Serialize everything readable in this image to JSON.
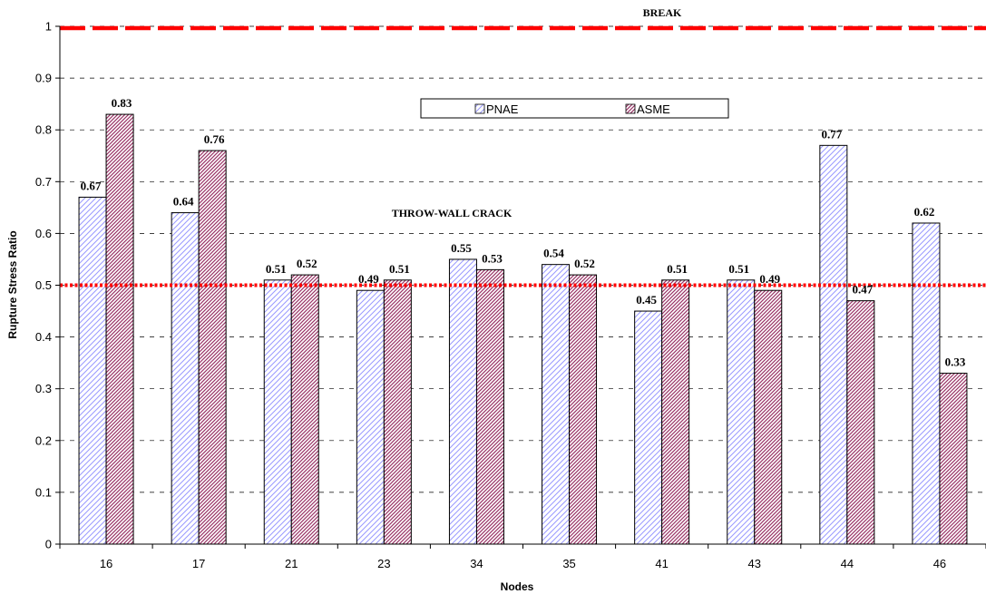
{
  "chart_data": {
    "type": "bar",
    "xlabel": "Nodes",
    "ylabel": "Rupture Stress Ratio",
    "categories": [
      "16",
      "17",
      "21",
      "23",
      "34",
      "35",
      "41",
      "43",
      "44",
      "46"
    ],
    "series": [
      {
        "name": "PNAE",
        "values": [
          0.67,
          0.64,
          0.51,
          0.49,
          0.55,
          0.54,
          0.45,
          0.51,
          0.77,
          0.62
        ],
        "color": "#9999ff",
        "pattern": "light-diagonal"
      },
      {
        "name": "ASME",
        "values": [
          0.83,
          0.76,
          0.52,
          0.51,
          0.53,
          0.52,
          0.51,
          0.49,
          0.47,
          0.33
        ],
        "color": "#993366",
        "pattern": "dense-diagonal"
      }
    ],
    "data_labels": {
      "PNAE": [
        "0.67",
        "0.64",
        "0.51",
        "0.49",
        "0.55",
        "0.54",
        "0.45",
        "0.51",
        "0.77",
        "0.62"
      ],
      "ASME": [
        "0.83",
        "0.76",
        "0.52",
        "0.51",
        "0.53",
        "0.52",
        "0.51",
        "0.49",
        "0.47",
        "0.33"
      ]
    },
    "ylim": [
      0,
      1
    ],
    "yticks": [
      "0",
      "0.1",
      "0.2",
      "0.3",
      "0.4",
      "0.5",
      "0.6",
      "0.7",
      "0.8",
      "0.9",
      "1"
    ],
    "grid": true,
    "legend": "top-center",
    "reference_lines": [
      {
        "label": "BREAK",
        "y": 1.0,
        "color": "#ff0000",
        "style": "long-dash"
      },
      {
        "label": "THROW-WALL CRACK",
        "y": 0.5,
        "color": "#ff0000",
        "style": "dotted"
      }
    ]
  }
}
